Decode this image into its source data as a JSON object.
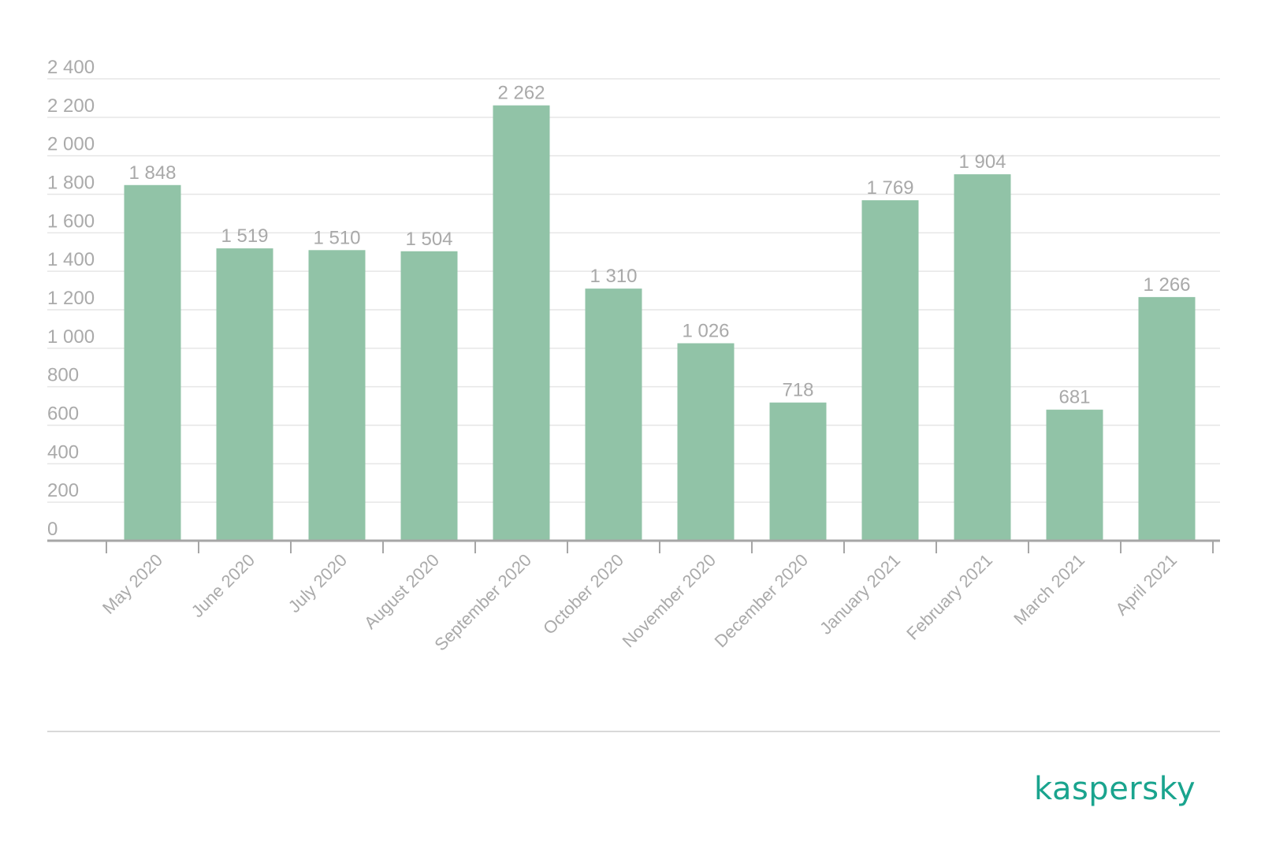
{
  "chart_data": {
    "type": "bar",
    "categories": [
      "May 2020",
      "June 2020",
      "July 2020",
      "August 2020",
      "September 2020",
      "October 2020",
      "November 2020",
      "December 2020",
      "January 2021",
      "February 2021",
      "March 2021",
      "April 2021"
    ],
    "values": [
      1848,
      1519,
      1510,
      1504,
      2262,
      1310,
      1026,
      718,
      1769,
      1904,
      681,
      1266
    ],
    "data_labels": [
      "1 848",
      "1 519",
      "1 510",
      "1 504",
      "2 262",
      "1 310",
      "1 026",
      "718",
      "1 769",
      "1 904",
      "681",
      "1 266"
    ],
    "yticks": [
      0,
      200,
      400,
      600,
      800,
      1000,
      1200,
      1400,
      1600,
      1800,
      2000,
      2200,
      2400
    ],
    "ytick_labels": [
      "0",
      "200",
      "400",
      "600",
      "800",
      "1 000",
      "1 200",
      "1 400",
      "1 600",
      "1 800",
      "2 000",
      "2 200",
      "2 400"
    ],
    "ylim": [
      0,
      2400
    ],
    "grid": true,
    "bar_color": "#91c3a7"
  },
  "brand": {
    "logo_text": "kaspersky",
    "color": "#1aa48e"
  }
}
